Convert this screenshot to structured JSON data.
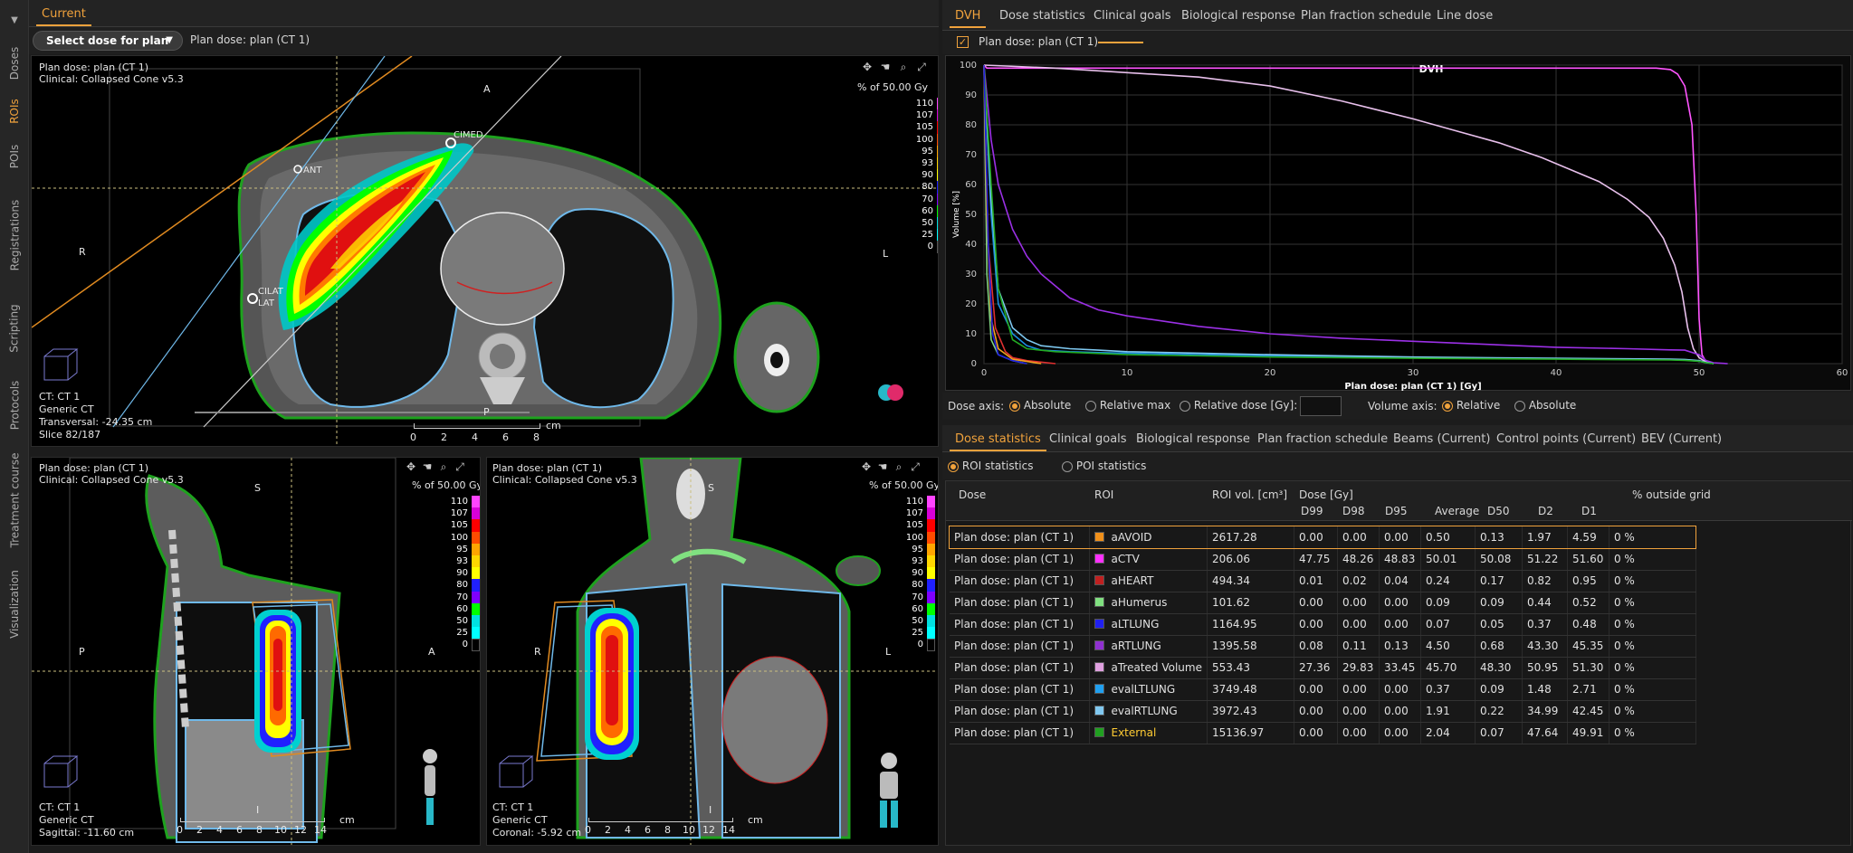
{
  "left_tabs": [
    "Doses",
    "ROIs",
    "POIs",
    "Registrations",
    "Scripting",
    "Protocols",
    "Treatment course",
    "Visualization"
  ],
  "left_tabs_active": "ROIs",
  "top_left": {
    "current_tab": "Current",
    "select_button": "Select dose for plan",
    "plan_dose_label": "Plan dose: plan (CT 1)"
  },
  "views": {
    "transversal": {
      "plan": "Plan dose: plan (CT 1)",
      "algo": "Clinical: Collapsed Cone v5.3",
      "units": "% of 50.00 Gy",
      "ct": "CT: CT 1",
      "ct_type": "Generic CT",
      "slice_info": "Transversal: -24.35 cm",
      "slice_num": "Slice 82/187",
      "orient_top": "A",
      "orient_bottom": "P",
      "orient_left": "R",
      "orient_right": "L",
      "scale_labels": [
        "0",
        "2",
        "4",
        "6",
        "8"
      ],
      "scale_unit": "cm",
      "poi_labels": [
        "CIMED",
        "ANT",
        "CILAT",
        "LAT"
      ]
    },
    "sagittal": {
      "plan": "Plan dose: plan (CT 1)",
      "algo": "Clinical: Collapsed Cone v5.3",
      "units": "% of 50.00 Gy",
      "ct": "CT: CT 1",
      "ct_type": "Generic CT",
      "slice_info": "Sagittal: -11.60 cm",
      "orient_top": "S",
      "orient_bottom": "I",
      "orient_left": "P",
      "orient_right": "A",
      "scale_labels": [
        "0",
        "2",
        "4",
        "6",
        "8",
        "10",
        "12",
        "14"
      ],
      "scale_unit": "cm"
    },
    "coronal": {
      "plan": "Plan dose: plan (CT 1)",
      "algo": "Clinical: Collapsed Cone v5.3",
      "units": "% of 50.00 Gy",
      "ct": "CT: CT 1",
      "ct_type": "Generic CT",
      "slice_info": "Coronal: -5.92 cm",
      "orient_top": "S",
      "orient_bottom": "I",
      "orient_left": "R",
      "orient_right": "L",
      "scale_labels": [
        "0",
        "2",
        "4",
        "6",
        "8",
        "10",
        "12",
        "14"
      ],
      "scale_unit": "cm"
    }
  },
  "colorbar": {
    "labels": [
      "110",
      "107",
      "105",
      "100",
      "95",
      "93",
      "90",
      "80",
      "70",
      "60",
      "50",
      "25",
      "0"
    ],
    "colors": [
      "#ff44ff",
      "#d800d8",
      "#ff0000",
      "#ff4b00",
      "#ffa500",
      "#ffd700",
      "#ffff00",
      "#2020ff",
      "#7f00ff",
      "#00ff00",
      "#00e0e0",
      "#00ffff",
      "#000000"
    ]
  },
  "dvh_tabs": [
    "DVH",
    "Dose statistics",
    "Clinical goals",
    "Biological response",
    "Plan fraction schedule",
    "Line dose"
  ],
  "dvh_legend_label": "Plan dose: plan (CT 1)",
  "chart_data": {
    "type": "line",
    "title": "DVH",
    "xlabel": "Plan dose: plan (CT 1) [Gy]",
    "ylabel": "Volume [%]",
    "xlim": [
      0,
      60
    ],
    "ylim": [
      0,
      100
    ],
    "xticks": [
      0,
      10,
      20,
      30,
      40,
      50,
      60
    ],
    "yticks": [
      0,
      10,
      20,
      30,
      40,
      50,
      60,
      70,
      80,
      90,
      100
    ],
    "series": [
      {
        "color": "#ff55ff",
        "x": [
          0,
          0.2,
          47,
          48,
          48.5,
          49,
          49.5,
          49.8,
          50,
          50.2,
          50.5,
          51
        ],
        "y": [
          100,
          99,
          99,
          98.5,
          97,
          93,
          80,
          50,
          15,
          3,
          0.5,
          0
        ]
      },
      {
        "color": "#e8c0ec",
        "x": [
          0,
          5,
          10,
          15,
          20,
          25,
          30,
          33,
          36,
          39,
          41,
          43,
          45,
          46.5,
          47.5,
          48.3,
          48.8,
          49.2,
          49.6,
          50,
          50.5,
          51
        ],
        "y": [
          100,
          99,
          97.5,
          96,
          93,
          88,
          82,
          78,
          74,
          69,
          65,
          61,
          55,
          49,
          42,
          33,
          24,
          12,
          5,
          2,
          0.5,
          0
        ]
      },
      {
        "color": "#9b30e6",
        "x": [
          0,
          0.5,
          1,
          2,
          3,
          4,
          6,
          8,
          10,
          15,
          20,
          25,
          30,
          35,
          40,
          45,
          48,
          49,
          50,
          50.5,
          51,
          52
        ],
        "y": [
          100,
          75,
          60,
          45,
          36,
          30,
          22,
          18,
          16,
          12.5,
          10,
          8.5,
          7.5,
          6.5,
          5.5,
          5,
          4.6,
          4.5,
          3,
          1,
          0.3,
          0
        ]
      },
      {
        "color": "#1b8ee0",
        "x": [
          0,
          0.5,
          1,
          2,
          3,
          4,
          6,
          8,
          10,
          15,
          20,
          25,
          30,
          40,
          45,
          48,
          49,
          50,
          50.5,
          51
        ],
        "y": [
          100,
          50,
          20,
          10,
          6,
          4.5,
          4,
          3.7,
          3.5,
          3,
          2.6,
          2.3,
          2,
          1.6,
          1.4,
          1.3,
          1.2,
          0.8,
          0.3,
          0
        ]
      },
      {
        "color": "#7ec8f0",
        "x": [
          0,
          0.5,
          1,
          2,
          3,
          4,
          6,
          8,
          10,
          15,
          20,
          25,
          30,
          40,
          45,
          48,
          49,
          50,
          50.5,
          51
        ],
        "y": [
          100,
          55,
          25,
          12,
          8,
          6,
          5,
          4.5,
          4,
          3.5,
          3,
          2.6,
          2.2,
          1.8,
          1.6,
          1.5,
          1.4,
          1,
          0.4,
          0
        ]
      },
      {
        "color": "#22aa22",
        "x": [
          0,
          0.5,
          1,
          2,
          3,
          5,
          10,
          20,
          30,
          40,
          48,
          49,
          50,
          50.5,
          51
        ],
        "y": [
          100,
          60,
          25,
          8,
          5,
          4,
          3,
          2.2,
          1.8,
          1.5,
          1.2,
          1.1,
          0.8,
          0.3,
          0
        ]
      },
      {
        "color": "#e03030",
        "x": [
          0,
          0.3,
          0.8,
          1.5,
          2,
          3,
          5
        ],
        "y": [
          100,
          40,
          12,
          4,
          2,
          1,
          0
        ]
      },
      {
        "color": "#80d080",
        "x": [
          0,
          0.2,
          0.5,
          1,
          2,
          3
        ],
        "y": [
          100,
          30,
          8,
          3,
          1,
          0
        ]
      },
      {
        "color": "#f0a020",
        "x": [
          0,
          0.2,
          0.5,
          1,
          2,
          4
        ],
        "y": [
          100,
          50,
          15,
          5,
          1.5,
          0
        ]
      },
      {
        "color": "#2020e0",
        "x": [
          0,
          0.3,
          0.6,
          1,
          2,
          3
        ],
        "y": [
          100,
          40,
          10,
          3,
          1,
          0
        ]
      }
    ]
  },
  "axis_controls": {
    "dose_axis_label": "Dose axis:",
    "dose_options": [
      "Absolute",
      "Relative max",
      "Relative dose [Gy]:"
    ],
    "dose_selected": "Absolute",
    "volume_axis_label": "Volume axis:",
    "volume_options": [
      "Relative",
      "Absolute"
    ],
    "volume_selected": "Relative"
  },
  "stats_tabs": [
    "Dose statistics",
    "Clinical goals",
    "Biological response",
    "Plan fraction schedule",
    "Beams (Current)",
    "Control points (Current)",
    "BEV (Current)"
  ],
  "stats_mode": {
    "roi": "ROI statistics",
    "poi": "POI statistics"
  },
  "table": {
    "headers": {
      "dose": "Dose",
      "roi": "ROI",
      "vol": "ROI vol. [cm³]",
      "dose_gy": "Dose [Gy]",
      "outside": "% outside grid"
    },
    "subheaders": [
      "D99",
      "D98",
      "D95",
      "Average",
      "D50",
      "D2",
      "D1"
    ],
    "rows": [
      {
        "dose": "Plan dose: plan (CT 1)",
        "roi": "aAVOID",
        "color": "#f0901a",
        "vol": "2617.28",
        "d99": "0.00",
        "d98": "0.00",
        "d95": "0.00",
        "avg": "0.50",
        "d50": "0.13",
        "d2": "1.97",
        "d1": "4.59",
        "out": "0 %"
      },
      {
        "dose": "Plan dose: plan (CT 1)",
        "roi": "aCTV",
        "color": "#ff30ff",
        "vol": "206.06",
        "d99": "47.75",
        "d98": "48.26",
        "d95": "48.83",
        "avg": "50.01",
        "d50": "50.08",
        "d2": "51.22",
        "d1": "51.60",
        "out": "0 %"
      },
      {
        "dose": "Plan dose: plan (CT 1)",
        "roi": "aHEART",
        "color": "#c02020",
        "vol": "494.34",
        "d99": "0.01",
        "d98": "0.02",
        "d95": "0.04",
        "avg": "0.24",
        "d50": "0.17",
        "d2": "0.82",
        "d1": "0.95",
        "out": "0 %"
      },
      {
        "dose": "Plan dose: plan (CT 1)",
        "roi": "aHumerus",
        "color": "#80e080",
        "vol": "101.62",
        "d99": "0.00",
        "d98": "0.00",
        "d95": "0.00",
        "avg": "0.09",
        "d50": "0.09",
        "d2": "0.44",
        "d1": "0.52",
        "out": "0 %"
      },
      {
        "dose": "Plan dose: plan (CT 1)",
        "roi": "aLTLUNG",
        "color": "#2020f0",
        "vol": "1164.95",
        "d99": "0.00",
        "d98": "0.00",
        "d95": "0.00",
        "avg": "0.07",
        "d50": "0.05",
        "d2": "0.37",
        "d1": "0.48",
        "out": "0 %"
      },
      {
        "dose": "Plan dose: plan (CT 1)",
        "roi": "aRTLUNG",
        "color": "#9030d0",
        "vol": "1395.58",
        "d99": "0.08",
        "d98": "0.11",
        "d95": "0.13",
        "avg": "4.50",
        "d50": "0.68",
        "d2": "43.30",
        "d1": "45.35",
        "out": "0 %"
      },
      {
        "dose": "Plan dose: plan (CT 1)",
        "roi": "aTreated Volume",
        "color": "#e0a0e0",
        "vol": "553.43",
        "d99": "27.36",
        "d98": "29.83",
        "d95": "33.45",
        "avg": "45.70",
        "d50": "48.30",
        "d2": "50.95",
        "d1": "51.30",
        "out": "0 %"
      },
      {
        "dose": "Plan dose: plan (CT 1)",
        "roi": "evalLTLUNG",
        "color": "#20a0f0",
        "vol": "3749.48",
        "d99": "0.00",
        "d98": "0.00",
        "d95": "0.00",
        "avg": "0.37",
        "d50": "0.09",
        "d2": "1.48",
        "d1": "2.71",
        "out": "0 %"
      },
      {
        "dose": "Plan dose: plan (CT 1)",
        "roi": "evalRTLUNG",
        "color": "#80c8f0",
        "vol": "3972.43",
        "d99": "0.00",
        "d98": "0.00",
        "d95": "0.00",
        "avg": "1.91",
        "d50": "0.22",
        "d2": "34.99",
        "d1": "42.45",
        "out": "0 %"
      },
      {
        "dose": "Plan dose: plan (CT 1)",
        "roi": "External",
        "color": "#20a020",
        "vol": "15136.97",
        "d99": "0.00",
        "d98": "0.00",
        "d95": "0.00",
        "avg": "2.04",
        "d50": "0.07",
        "d2": "47.64",
        "d1": "49.91",
        "out": "0 %"
      }
    ]
  }
}
